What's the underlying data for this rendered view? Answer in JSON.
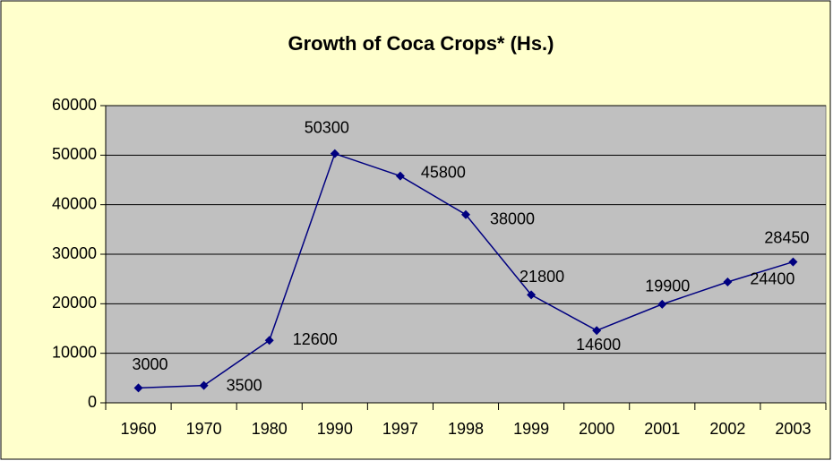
{
  "chart_data": {
    "type": "line",
    "title": "Growth of Coca Crops* (Hs.)",
    "categories": [
      "1960",
      "1970",
      "1980",
      "1990",
      "1997",
      "1998",
      "1999",
      "2000",
      "2001",
      "2002",
      "2003"
    ],
    "series": [
      {
        "name": "Coca Crops",
        "color": "#000080",
        "values": [
          3000,
          3500,
          12600,
          50300,
          45800,
          38000,
          21800,
          14600,
          19900,
          24400,
          28450
        ]
      }
    ],
    "ylim": [
      0,
      60000
    ],
    "yticks": [
      0,
      10000,
      20000,
      30000,
      40000,
      50000,
      60000
    ],
    "grid": true,
    "legend": false
  }
}
